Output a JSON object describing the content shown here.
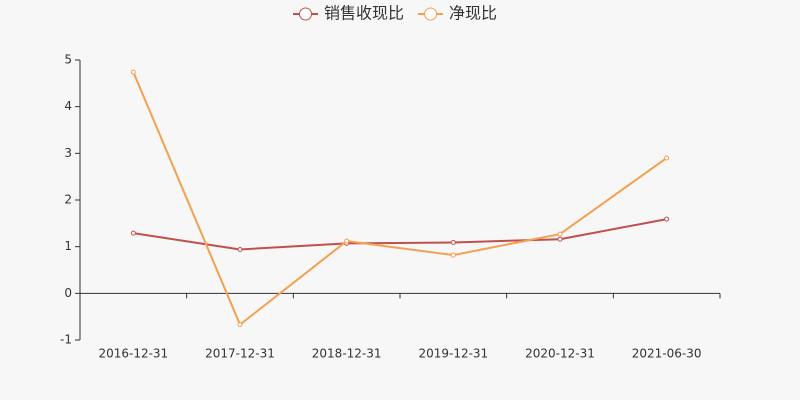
{
  "chart_data": {
    "type": "line",
    "categories": [
      "2016-12-31",
      "2017-12-31",
      "2018-12-31",
      "2019-12-31",
      "2020-12-31",
      "2021-06-30"
    ],
    "series": [
      {
        "name": "销售收现比",
        "color": "#c0504d",
        "values": [
          1.29,
          0.94,
          1.07,
          1.09,
          1.16,
          1.59
        ]
      },
      {
        "name": "净现比",
        "color": "#f4a04f",
        "values": [
          4.74,
          -0.67,
          1.12,
          0.82,
          1.27,
          2.9
        ]
      }
    ],
    "ylim": [
      -1,
      5
    ],
    "yticks": [
      -1,
      0,
      1,
      2,
      3,
      4,
      5
    ],
    "grid": false
  }
}
